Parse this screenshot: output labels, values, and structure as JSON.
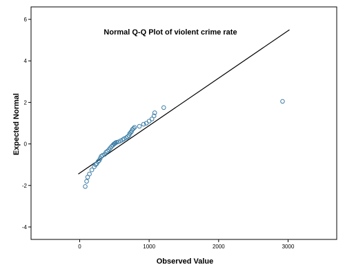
{
  "chart_data": {
    "type": "scatter",
    "title": "Normal Q-Q Plot of violent crime rate",
    "xlabel": "Observed Value",
    "ylabel": "Expected Normal",
    "xlim": [
      -700,
      3700
    ],
    "ylim": [
      -4.6,
      6.6
    ],
    "x_ticks": [
      0,
      1000,
      2000,
      3000
    ],
    "y_ticks": [
      -4,
      -2,
      0,
      2,
      4,
      6
    ],
    "grid": false,
    "legend": "none",
    "reference_line": {
      "x": [
        -20,
        3020
      ],
      "y": [
        -1.45,
        5.5
      ]
    },
    "points": {
      "x": [
        80,
        100,
        115,
        140,
        175,
        210,
        230,
        245,
        265,
        280,
        295,
        310,
        330,
        360,
        380,
        400,
        420,
        440,
        460,
        480,
        495,
        505,
        515,
        530,
        560,
        590,
        620,
        640,
        670,
        690,
        710,
        720,
        735,
        745,
        760,
        775,
        790,
        860,
        920,
        960,
        1000,
        1040,
        1070,
        1080,
        1210,
        2920
      ],
      "y": [
        -2.05,
        -1.8,
        -1.6,
        -1.45,
        -1.25,
        -1.1,
        -1.0,
        -0.95,
        -0.85,
        -0.8,
        -0.7,
        -0.6,
        -0.55,
        -0.5,
        -0.4,
        -0.35,
        -0.28,
        -0.2,
        -0.12,
        -0.05,
        0.0,
        0.02,
        0.05,
        0.08,
        0.1,
        0.15,
        0.2,
        0.25,
        0.3,
        0.35,
        0.4,
        0.5,
        0.55,
        0.6,
        0.7,
        0.75,
        0.8,
        0.85,
        0.95,
        1.0,
        1.1,
        1.2,
        1.35,
        1.5,
        1.75,
        2.05
      ]
    },
    "colors": {
      "point_stroke": "#3a7ca5",
      "line": "#000000",
      "axis": "#000000"
    }
  }
}
